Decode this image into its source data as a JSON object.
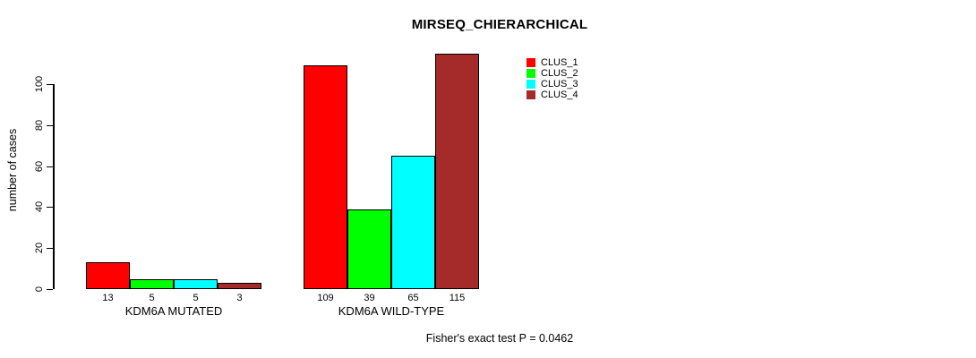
{
  "title": "MIRSEQ_CHIERARCHICAL",
  "annotation": "Fisher's exact test P = 0.0462",
  "chart_data": {
    "type": "bar",
    "title": "MIRSEQ_CHIERARCHICAL",
    "xlabel": "",
    "ylabel": "number of cases",
    "categories": [
      "KDM6A MUTATED",
      "KDM6A WILD-TYPE"
    ],
    "series": [
      {
        "name": "CLUS_1",
        "color": "#FF0000",
        "values": [
          13,
          109
        ]
      },
      {
        "name": "CLUS_2",
        "color": "#00FF00",
        "values": [
          5,
          39
        ]
      },
      {
        "name": "CLUS_3",
        "color": "#00FFFF",
        "values": [
          5,
          65
        ]
      },
      {
        "name": "CLUS_4",
        "color": "#A52A2A",
        "values": [
          3,
          115
        ]
      }
    ],
    "bar_labels": [
      [
        13,
        5,
        5,
        3
      ],
      [
        109,
        39,
        65,
        115
      ]
    ],
    "yticks": [
      0,
      20,
      40,
      60,
      80,
      100
    ],
    "ylim": [
      0,
      115
    ],
    "grid": false,
    "legend_position": "top-right",
    "annotation": "Fisher's exact test P = 0.0462"
  }
}
